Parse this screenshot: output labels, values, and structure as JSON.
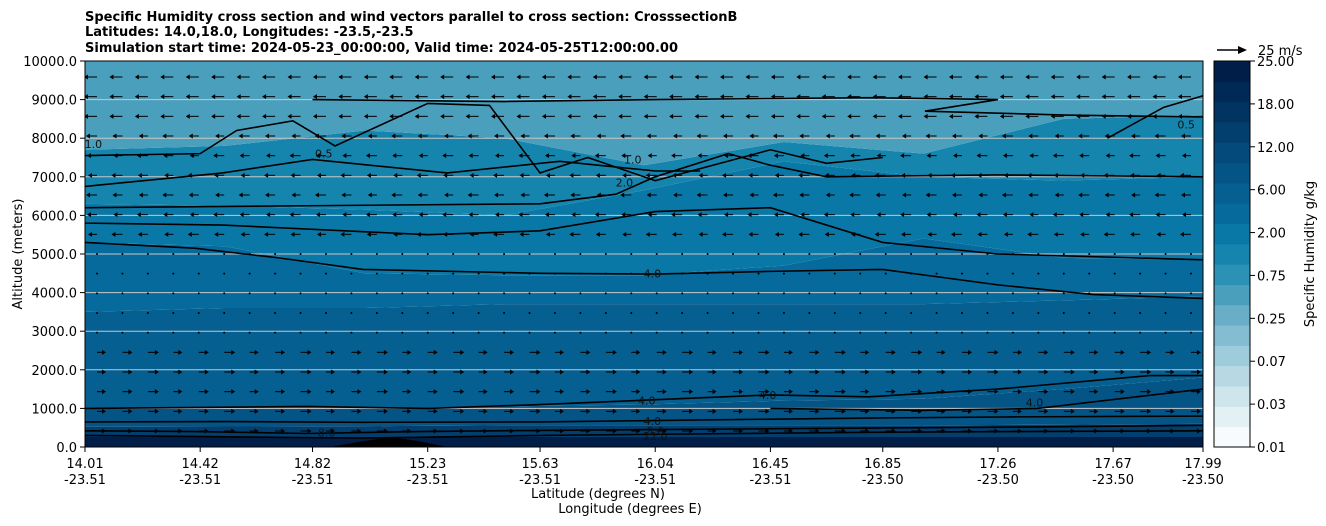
{
  "chart_data": {
    "type": "contour",
    "title_lines": [
      "Specific Humidity cross section and wind vectors parallel to cross section: CrosssectionB",
      "Latitudes: 14.0,18.0, Longitudes: -23.5,-23.5",
      "Simulation start time: 2024-05-23_00:00:00, Valid time: 2024-05-25T12:00:00.00"
    ],
    "xlabel_lat": "Latitude (degrees N)",
    "xlabel_lon": "Longitude (degrees E)",
    "ylabel": "Altitude (meters)",
    "x_ticks": [
      {
        "lat": "14.01",
        "lon": "-23.51"
      },
      {
        "lat": "14.42",
        "lon": "-23.51"
      },
      {
        "lat": "14.82",
        "lon": "-23.51"
      },
      {
        "lat": "15.23",
        "lon": "-23.51"
      },
      {
        "lat": "15.63",
        "lon": "-23.51"
      },
      {
        "lat": "16.04",
        "lon": "-23.51"
      },
      {
        "lat": "16.45",
        "lon": "-23.51"
      },
      {
        "lat": "16.85",
        "lon": "-23.50"
      },
      {
        "lat": "17.26",
        "lon": "-23.50"
      },
      {
        "lat": "17.67",
        "lon": "-23.50"
      },
      {
        "lat": "17.99",
        "lon": "-23.50"
      }
    ],
    "x_range": [
      14.01,
      17.99
    ],
    "y_ticks": [
      "0.0",
      "1000.0",
      "2000.0",
      "3000.0",
      "4000.0",
      "5000.0",
      "6000.0",
      "7000.0",
      "8000.0",
      "9000.0",
      "10000.0"
    ],
    "ylim": [
      0,
      10000
    ],
    "grid": "horizontal",
    "colorbar": {
      "label": "Specific Humidity g/kg",
      "levels": [
        0.01,
        0.02,
        0.03,
        0.05,
        0.07,
        0.1,
        0.25,
        0.5,
        0.75,
        1.0,
        2.0,
        4.0,
        6.0,
        8.0,
        12.0,
        15.0,
        18.0,
        21.0,
        25.0
      ],
      "tick_labels": [
        "0.01",
        "0.03",
        "0.07",
        "0.25",
        "0.75",
        "2.00",
        "6.00",
        "12.00",
        "18.00",
        "25.00"
      ],
      "colors": [
        "#f7fbfd",
        "#e3f0f4",
        "#cfe5ec",
        "#b8d9e4",
        "#9fccdb",
        "#84bdd1",
        "#68aec7",
        "#4a9fbd",
        "#2b91b5",
        "#1685ae",
        "#0a78a6",
        "#066b9c",
        "#055f91",
        "#045485",
        "#044a7a",
        "#033f6e",
        "#023462",
        "#012955",
        "#011e48"
      ]
    },
    "quiver_key": {
      "label": "25 m/s",
      "speed": 25
    },
    "contour_labels": [
      {
        "text": "1.0",
        "x": 14.04,
        "y": 7850
      },
      {
        "text": "0.5",
        "x": 14.86,
        "y": 7600
      },
      {
        "text": "1.0",
        "x": 15.96,
        "y": 7450
      },
      {
        "text": "2.0",
        "x": 15.93,
        "y": 6850
      },
      {
        "text": "0.5",
        "x": 17.93,
        "y": 8350
      },
      {
        "text": "4.0",
        "x": 16.03,
        "y": 4500
      },
      {
        "text": "4.0",
        "x": 16.01,
        "y": 1200
      },
      {
        "text": "4.0",
        "x": 16.44,
        "y": 1350
      },
      {
        "text": "4.0",
        "x": 16.03,
        "y": 680
      },
      {
        "text": "4.0",
        "x": 17.39,
        "y": 1150
      },
      {
        "text": "8.0",
        "x": 14.87,
        "y": 370
      },
      {
        "text": "8.0",
        "x": 16.04,
        "y": 420
      },
      {
        "text": "12.0",
        "x": 16.04,
        "y": 280
      }
    ],
    "fill_bands": [
      {
        "level": 25.0,
        "y": [
          260,
          260,
          260,
          260,
          260,
          260,
          260,
          260,
          260
        ]
      },
      {
        "level": 15.0,
        "y": [
          520,
          530,
          540,
          560,
          560,
          560,
          560,
          580,
          600
        ]
      },
      {
        "level": 8.0,
        "y": [
          1000,
          1000,
          1000,
          1050,
          1100,
          1200,
          1250,
          1500,
          1800
        ]
      },
      {
        "level": 6.0,
        "y": [
          3500,
          3600,
          3600,
          3700,
          3700,
          3700,
          3700,
          3800,
          3900
        ]
      },
      {
        "level": 4.0,
        "y": [
          5300,
          5200,
          4500,
          4450,
          4450,
          4700,
          5400,
          4900,
          4850
        ]
      },
      {
        "level": 2.0,
        "y": [
          6300,
          6250,
          6150,
          6000,
          6650,
          7400,
          7000,
          6900,
          7000
        ]
      },
      {
        "level": 1.0,
        "y": [
          7700,
          7800,
          8200,
          8000,
          7300,
          7900,
          7600,
          8500,
          8600
        ]
      },
      {
        "level": 0.5,
        "y": [
          10000,
          10000,
          10000,
          10000,
          10000,
          10000,
          10000,
          10000,
          10000
        ]
      }
    ],
    "contour_lines": [
      {
        "level": 12.0,
        "points": [
          [
            14.01,
            300
          ],
          [
            14.3,
            280
          ],
          [
            15.0,
            230
          ],
          [
            15.63,
            300
          ],
          [
            16.2,
            340
          ],
          [
            16.8,
            380
          ],
          [
            17.3,
            400
          ],
          [
            17.99,
            420
          ]
        ]
      },
      {
        "level": 8.0,
        "points": [
          [
            14.01,
            420
          ],
          [
            14.4,
            400
          ],
          [
            14.8,
            350
          ],
          [
            15.2,
            400
          ],
          [
            15.63,
            430
          ],
          [
            16.2,
            460
          ],
          [
            16.8,
            490
          ],
          [
            17.4,
            520
          ],
          [
            17.99,
            560
          ]
        ]
      },
      {
        "level": 4.0,
        "points": [
          [
            14.01,
            650
          ],
          [
            14.5,
            660
          ],
          [
            15.0,
            640
          ],
          [
            15.63,
            650
          ],
          [
            16.2,
            700
          ],
          [
            16.8,
            750
          ],
          [
            17.3,
            780
          ],
          [
            17.99,
            800
          ]
        ]
      },
      {
        "level": 4.0,
        "points": [
          [
            14.01,
            1000
          ],
          [
            14.8,
            1050
          ],
          [
            15.23,
            1000
          ],
          [
            15.63,
            1100
          ],
          [
            16.45,
            1350
          ],
          [
            16.8,
            1300
          ],
          [
            17.26,
            1500
          ],
          [
            17.8,
            1850
          ],
          [
            17.99,
            1850
          ]
        ]
      },
      {
        "level": 4.0,
        "points": [
          [
            16.45,
            1000
          ],
          [
            17.0,
            950
          ],
          [
            17.4,
            1000
          ],
          [
            17.99,
            1500
          ]
        ]
      },
      {
        "level": 4.0,
        "points": [
          [
            14.01,
            5300
          ],
          [
            14.4,
            5150
          ],
          [
            14.7,
            4900
          ],
          [
            15.0,
            4600
          ],
          [
            15.63,
            4500
          ],
          [
            16.04,
            4480
          ],
          [
            16.45,
            4550
          ],
          [
            16.85,
            4600
          ],
          [
            17.26,
            4200
          ],
          [
            17.6,
            3950
          ],
          [
            17.99,
            3850
          ]
        ]
      },
      {
        "level": 2.0,
        "points": [
          [
            14.01,
            5800
          ],
          [
            14.5,
            5750
          ],
          [
            15.23,
            5500
          ],
          [
            15.63,
            5600
          ],
          [
            16.04,
            6100
          ],
          [
            16.45,
            6200
          ],
          [
            16.85,
            5300
          ],
          [
            17.26,
            5000
          ],
          [
            17.99,
            4850
          ]
        ]
      },
      {
        "level": 2.0,
        "points": [
          [
            14.01,
            6200
          ],
          [
            14.8,
            6250
          ],
          [
            15.63,
            6300
          ],
          [
            15.9,
            6550
          ],
          [
            16.04,
            7000
          ],
          [
            16.3,
            7600
          ],
          [
            16.45,
            7300
          ],
          [
            16.65,
            7000
          ],
          [
            17.26,
            7050
          ],
          [
            17.99,
            7000
          ]
        ]
      },
      {
        "level": 1.0,
        "points": [
          [
            14.01,
            6750
          ],
          [
            14.5,
            7100
          ],
          [
            14.82,
            7450
          ],
          [
            15.3,
            7100
          ],
          [
            15.7,
            7400
          ],
          [
            16.04,
            7150
          ],
          [
            16.2,
            7150
          ]
        ]
      },
      {
        "level": 1.0,
        "points": [
          [
            14.01,
            7550
          ],
          [
            14.42,
            7600
          ],
          [
            14.55,
            8200
          ],
          [
            14.75,
            8450
          ],
          [
            14.9,
            7800
          ],
          [
            15.23,
            8900
          ],
          [
            15.45,
            8850
          ],
          [
            15.63,
            7100
          ],
          [
            15.8,
            7500
          ],
          [
            16.04,
            6900
          ],
          [
            16.45,
            7700
          ],
          [
            16.65,
            7350
          ],
          [
            16.85,
            7500
          ]
        ]
      },
      {
        "level": 1.0,
        "points": [
          [
            14.82,
            9000
          ],
          [
            15.5,
            8950
          ],
          [
            16.04,
            9000
          ],
          [
            16.8,
            9050
          ],
          [
            17.26,
            9000
          ],
          [
            17.0,
            8700
          ],
          [
            17.5,
            8600
          ],
          [
            17.99,
            8550
          ]
        ]
      },
      {
        "level": 0.5,
        "points": [
          [
            17.65,
            8000
          ],
          [
            17.85,
            8800
          ],
          [
            17.99,
            9100
          ]
        ]
      }
    ],
    "terrain": {
      "points": [
        [
          14.88,
          0
        ],
        [
          15.0,
          150
        ],
        [
          15.1,
          260
        ],
        [
          15.2,
          150
        ],
        [
          15.3,
          0
        ]
      ]
    }
  }
}
